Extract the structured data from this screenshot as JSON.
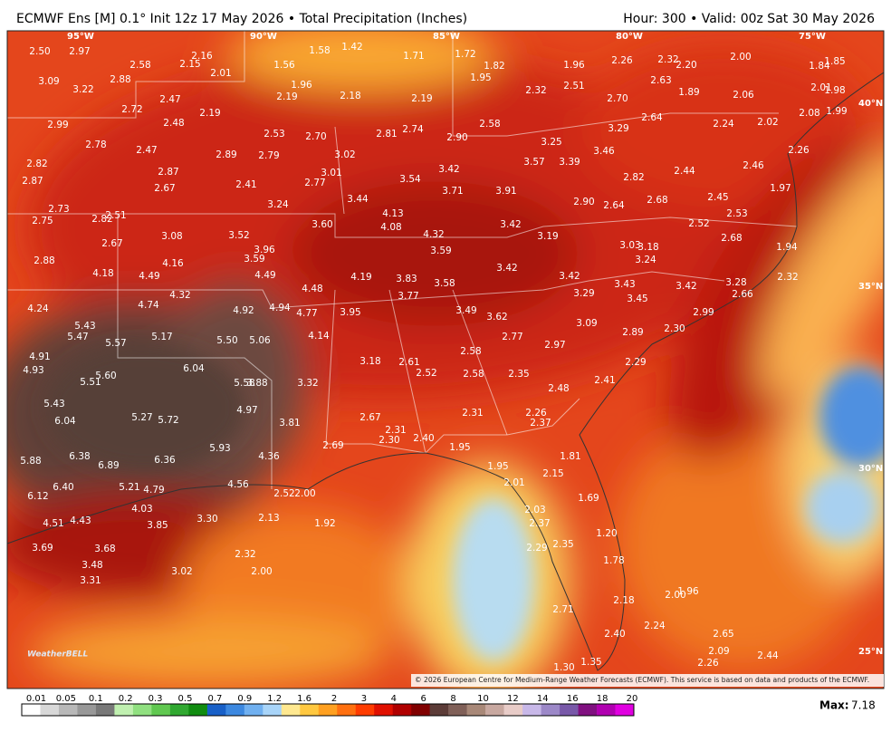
{
  "header": {
    "title": "ECMWF Ens [M] 0.1° Init 12z 17 May 2026 • Total Precipitation (Inches)",
    "valid": "Hour: 300 • Valid: 00z Sat 30 May 2026"
  },
  "map": {
    "longitude_labels": [
      "95°W",
      "90°W",
      "85°W",
      "80°W",
      "75°W"
    ],
    "latitude_labels": [
      "40°N",
      "35°N",
      "30°N",
      "25°N"
    ],
    "station_values": [
      "2.50",
      "2.97",
      "2.16",
      "2.15",
      "2.58",
      "2.01",
      "1.56",
      "1.58",
      "1.42",
      "1.71",
      "1.72",
      "1.82",
      "1.96",
      "2.26",
      "2.32",
      "2.20",
      "2.00",
      "1.84",
      "1.85",
      "3.09",
      "3.22",
      "2.88",
      "2.72",
      "2.47",
      "1.96",
      "2.19",
      "2.18",
      "2.19",
      "1.95",
      "2.32",
      "2.51",
      "2.63",
      "1.89",
      "2.70",
      "2.06",
      "2.01",
      "1.98",
      "2.99",
      "2.19",
      "2.48",
      "2.53",
      "2.70",
      "2.81",
      "2.74",
      "2.58",
      "2.64",
      "3.29",
      "2.24",
      "2.02",
      "2.08",
      "1.99",
      "2.78",
      "2.47",
      "2.89",
      "2.79",
      "3.02",
      "2.90",
      "3.25",
      "3.46",
      "3.57",
      "3.39",
      "2.26",
      "2.82",
      "2.87",
      "2.87",
      "2.67",
      "2.41",
      "3.01",
      "2.77",
      "3.42",
      "3.54",
      "3.71",
      "3.91",
      "2.82",
      "2.44",
      "2.46",
      "1.97",
      "2.73",
      "2.75",
      "2.82",
      "2.51",
      "3.24",
      "3.44",
      "4.13",
      "2.90",
      "2.64",
      "2.68",
      "2.45",
      "2.53",
      "2.52",
      "3.60",
      "4.08",
      "4.32",
      "3.42",
      "3.08",
      "3.52",
      "2.67",
      "3.19",
      "3.03",
      "3.18",
      "2.68",
      "1.94",
      "2.88",
      "3.96",
      "3.59",
      "4.16",
      "3.59",
      "3.24",
      "4.18",
      "4.49",
      "4.49",
      "3.42",
      "4.19",
      "3.83",
      "3.58",
      "3.42",
      "3.43",
      "3.42",
      "3.28",
      "2.66",
      "2.32",
      "4.32",
      "4.48",
      "3.77",
      "3.29",
      "3.45",
      "4.24",
      "4.74",
      "4.92",
      "4.94",
      "4.77",
      "3.95",
      "3.49",
      "3.62",
      "2.99",
      "5.43",
      "5.47",
      "5.57",
      "5.17",
      "5.50",
      "5.06",
      "4.14",
      "3.09",
      "2.89",
      "2.30",
      "2.77",
      "2.97",
      "4.91",
      "4.93",
      "2.58",
      "3.18",
      "2.61",
      "2.52",
      "2.58",
      "2.35",
      "2.29",
      "6.04",
      "5.60",
      "5.51",
      "5.58",
      "3.88",
      "3.32",
      "2.48",
      "2.41",
      "5.43",
      "4.97",
      "2.31",
      "2.26",
      "2.37",
      "2.67",
      "6.04",
      "5.27",
      "5.72",
      "3.81",
      "2.31",
      "2.30",
      "2.40",
      "1.95",
      "2.69",
      "5.93",
      "5.88",
      "6.38",
      "6.89",
      "6.36",
      "4.36",
      "1.95",
      "2.15",
      "1.81",
      "2.01",
      "6.12",
      "6.40",
      "5.21",
      "4.79",
      "4.56",
      "2.52",
      "2.00",
      "1.69",
      "4.51",
      "4.43",
      "4.03",
      "3.85",
      "3.30",
      "2.13",
      "1.92",
      "2.03",
      "2.37",
      "1.20",
      "3.69",
      "3.68",
      "2.32",
      "2.29",
      "2.35",
      "1.78",
      "3.48",
      "3.02",
      "2.00",
      "3.31",
      "2.18",
      "2.00",
      "1.96",
      "2.71",
      "2.24",
      "2.40",
      "2.65",
      "2.09",
      "2.44",
      "2.26",
      "1.30",
      "1.35"
    ],
    "credit": "© 2026 European Centre for Medium-Range Weather Forecasts (ECMWF). This service is based on data and products of the ECMWF.",
    "logo": "WeatherBELL"
  },
  "colorbar": {
    "labels": [
      "0.01",
      "0.05",
      "0.1",
      "0.2",
      "0.3",
      "0.5",
      "0.7",
      "0.9",
      "1.2",
      "1.6",
      "2",
      "3",
      "4",
      "6",
      "8",
      "10",
      "12",
      "14",
      "16",
      "18",
      "20"
    ],
    "colors": [
      "#ffffff",
      "#d8d8d8",
      "#b8b8b8",
      "#989898",
      "#787878",
      "#c0f0b0",
      "#90e080",
      "#60c850",
      "#30a830",
      "#108c10",
      "#1860c8",
      "#3c88e0",
      "#70b0f0",
      "#a8d4f8",
      "#ffe890",
      "#ffc840",
      "#ffa020",
      "#ff7010",
      "#ff3c00",
      "#e01000",
      "#b00000",
      "#800000",
      "#5c3c38",
      "#806058",
      "#a88878",
      "#c8a8a0",
      "#e8ccc8",
      "#c8b8e8",
      "#9c88c8",
      "#7858a8",
      "#801080",
      "#b000b0",
      "#e000e0"
    ]
  },
  "max": {
    "label": "Max:",
    "value": "7.18"
  }
}
